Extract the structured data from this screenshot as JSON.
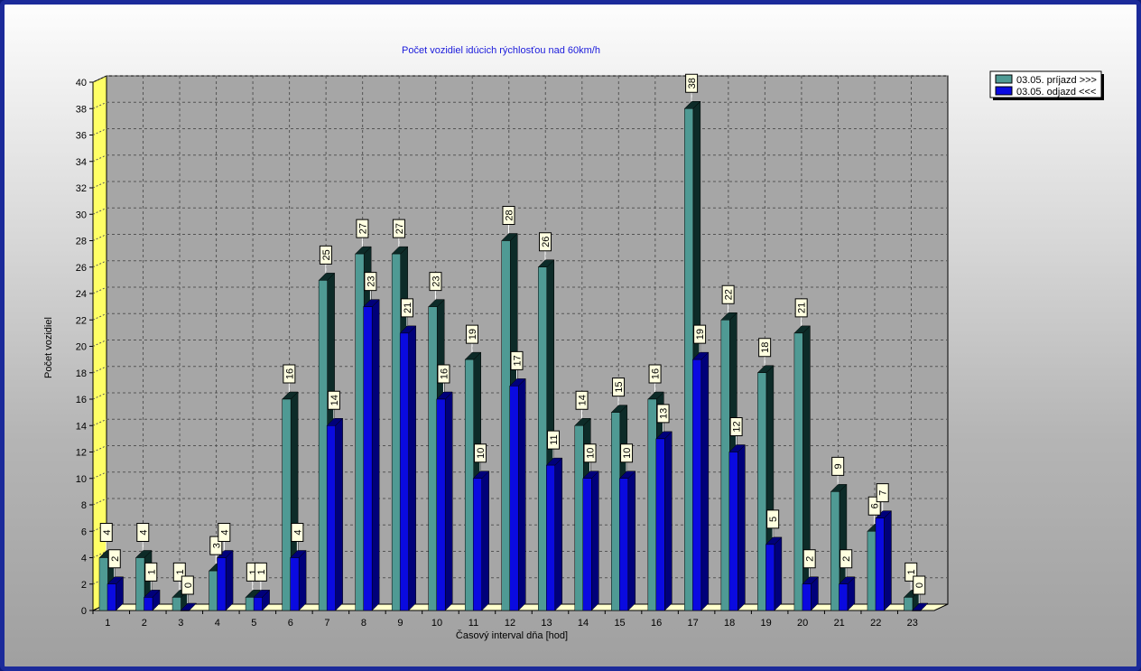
{
  "chart_data": {
    "type": "bar",
    "title": "Počet vozidiel idúcich rýchlosťou nad 60km/h",
    "xlabel": "Časový interval dňa [hod]",
    "ylabel": "Počet vozidiel",
    "ylim": [
      0,
      40
    ],
    "yticks": [
      "0",
      "2",
      "4",
      "6",
      "8",
      "10",
      "12",
      "14",
      "16",
      "18",
      "20",
      "22",
      "24",
      "26",
      "28",
      "30",
      "32",
      "34",
      "36",
      "38",
      "40"
    ],
    "grid": true,
    "legend_position": "top-right",
    "categories": [
      "1",
      "2",
      "3",
      "4",
      "5",
      "6",
      "7",
      "8",
      "9",
      "10",
      "11",
      "12",
      "13",
      "14",
      "15",
      "16",
      "17",
      "18",
      "19",
      "20",
      "21",
      "22",
      "23"
    ],
    "series": [
      {
        "name": "03.05.  príjazd >>>",
        "color": "#4f9a94",
        "side_color": "#0d2b28",
        "values": [
          4,
          4,
          1,
          3,
          1,
          16,
          25,
          27,
          27,
          23,
          19,
          28,
          26,
          14,
          15,
          16,
          38,
          22,
          18,
          21,
          9,
          6,
          1
        ]
      },
      {
        "name": "03.05.  odjazd <<<",
        "color": "#0a0ae0",
        "side_color": "#00007a",
        "values": [
          2,
          1,
          0,
          4,
          1,
          4,
          14,
          23,
          21,
          16,
          10,
          17,
          11,
          10,
          10,
          13,
          19,
          12,
          5,
          2,
          2,
          7,
          0
        ]
      }
    ]
  }
}
